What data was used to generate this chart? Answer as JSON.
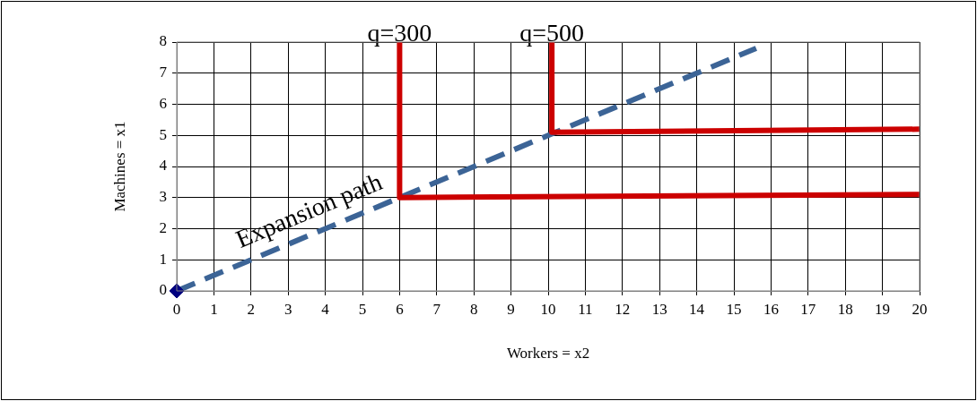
{
  "chart_data": {
    "type": "line",
    "xlabel": "Workers = x2",
    "ylabel": "Machines = x1",
    "xlim": [
      0,
      20
    ],
    "ylim": [
      0,
      8
    ],
    "xticks": [
      0,
      1,
      2,
      3,
      4,
      5,
      6,
      7,
      8,
      9,
      10,
      11,
      12,
      13,
      14,
      15,
      16,
      17,
      18,
      19,
      20
    ],
    "yticks": [
      0,
      1,
      2,
      3,
      4,
      5,
      6,
      7,
      8
    ],
    "grid": true,
    "legend": false,
    "marker": "none",
    "series": [
      {
        "color": "#cc0000",
        "x": [
          6,
          6,
          20
        ],
        "values": [
          8,
          3,
          3.1
        ],
        "line_style": "solid"
      },
      {
        "color": "#cc0000",
        "x": [
          10.1,
          10.1,
          20
        ],
        "values": [
          8,
          5.1,
          5.2
        ],
        "line_style": "solid"
      },
      {
        "color": "#3c6496",
        "x": [
          0,
          6,
          10,
          15.6
        ],
        "values": [
          0,
          3,
          5,
          7.8
        ],
        "line_style": "dashed"
      },
      {
        "type": "scatter",
        "color": "#000080",
        "x": [
          0
        ],
        "values": [
          0
        ],
        "marker": "diamond"
      }
    ],
    "annotations": [
      {
        "text": "q=300",
        "x": 6,
        "y": 8
      },
      {
        "text": "q=500",
        "x": 10.1,
        "y": 8
      },
      {
        "text": "Expansion path",
        "x": 3.8,
        "y": 1.9
      }
    ]
  }
}
